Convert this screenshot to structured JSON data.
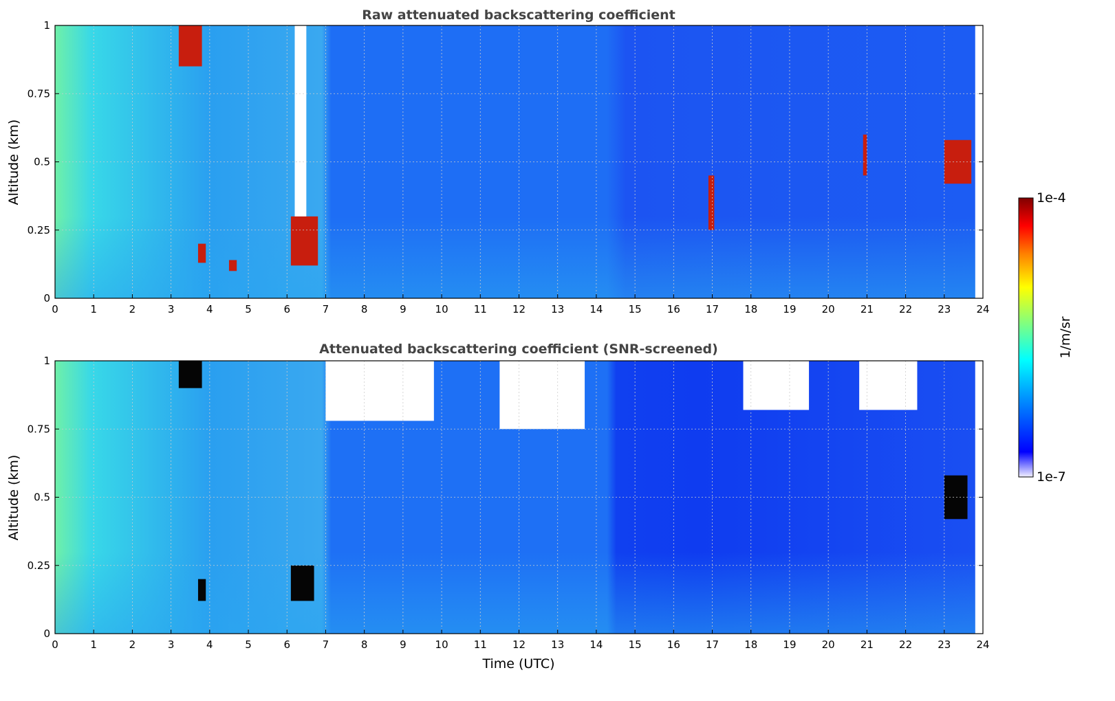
{
  "figure": {
    "colorbar": {
      "max_label": "1e-4",
      "min_label": "1e-7",
      "unit": "1/m/sr",
      "scale": "log",
      "colormap": "jet (white at minimum)",
      "stops": [
        "#f2f0ff",
        "#0000ff",
        "#00a0ff",
        "#00ffff",
        "#80ff80",
        "#ffff00",
        "#ff8000",
        "#ff0000",
        "#800000"
      ]
    }
  },
  "chart_data": [
    {
      "type": "heatmap",
      "title": "Raw attenuated backscattering coefficient",
      "xlabel": "",
      "ylabel": "Altitude (km)",
      "xlim": [
        0,
        24
      ],
      "ylim": [
        0,
        1
      ],
      "x_ticks": [
        "0",
        "1",
        "2",
        "3",
        "4",
        "5",
        "6",
        "7",
        "8",
        "9",
        "10",
        "11",
        "12",
        "13",
        "14",
        "15",
        "16",
        "17",
        "18",
        "19",
        "20",
        "21",
        "22",
        "23",
        "24"
      ],
      "y_ticks": [
        "0",
        "0.25",
        "0.5",
        "0.75",
        "1"
      ],
      "grid": true,
      "data_coverage_hours": [
        0,
        23.8
      ],
      "features": [
        {
          "time_start": 3.2,
          "time_end": 3.8,
          "alt_start": 0.85,
          "alt_end": 1.0,
          "level": "high"
        },
        {
          "time_start": 3.7,
          "time_end": 3.9,
          "alt_start": 0.13,
          "alt_end": 0.2,
          "level": "high"
        },
        {
          "time_start": 4.5,
          "time_end": 4.7,
          "alt_start": 0.1,
          "alt_end": 0.14,
          "level": "high"
        },
        {
          "time_start": 6.1,
          "time_end": 6.8,
          "alt_start": 0.12,
          "alt_end": 0.3,
          "level": "high"
        },
        {
          "time_start": 6.2,
          "time_end": 6.5,
          "alt_start": 0.3,
          "alt_end": 1.0,
          "level": "missing"
        },
        {
          "time_start": 16.9,
          "time_end": 17.05,
          "alt_start": 0.25,
          "alt_end": 0.45,
          "level": "high"
        },
        {
          "time_start": 20.9,
          "time_end": 21.0,
          "alt_start": 0.45,
          "alt_end": 0.6,
          "level": "high"
        },
        {
          "time_start": 23.0,
          "time_end": 23.7,
          "alt_start": 0.42,
          "alt_end": 0.58,
          "level": "high"
        }
      ]
    },
    {
      "type": "heatmap",
      "title": "Attenuated backscattering coefficient (SNR-screened)",
      "xlabel": "Time (UTC)",
      "ylabel": "Altitude (km)",
      "xlim": [
        0,
        24
      ],
      "ylim": [
        0,
        1
      ],
      "x_ticks": [
        "0",
        "1",
        "2",
        "3",
        "4",
        "5",
        "6",
        "7",
        "8",
        "9",
        "10",
        "11",
        "12",
        "13",
        "14",
        "15",
        "16",
        "17",
        "18",
        "19",
        "20",
        "21",
        "22",
        "23",
        "24"
      ],
      "y_ticks": [
        "0",
        "0.25",
        "0.5",
        "0.75",
        "1"
      ],
      "grid": true,
      "data_coverage_hours": [
        0,
        23.8
      ],
      "features": [
        {
          "time_start": 7.0,
          "time_end": 9.8,
          "alt_start": 0.78,
          "alt_end": 1.0,
          "level": "screened"
        },
        {
          "time_start": 11.5,
          "time_end": 13.7,
          "alt_start": 0.75,
          "alt_end": 1.0,
          "level": "screened"
        },
        {
          "time_start": 17.8,
          "time_end": 19.5,
          "alt_start": 0.82,
          "alt_end": 1.0,
          "level": "screened"
        },
        {
          "time_start": 20.8,
          "time_end": 22.3,
          "alt_start": 0.82,
          "alt_end": 1.0,
          "level": "screened"
        },
        {
          "time_start": 3.2,
          "time_end": 3.8,
          "alt_start": 0.9,
          "alt_end": 1.0,
          "level": "saturated"
        },
        {
          "time_start": 3.7,
          "time_end": 3.9,
          "alt_start": 0.12,
          "alt_end": 0.2,
          "level": "saturated"
        },
        {
          "time_start": 6.1,
          "time_end": 6.7,
          "alt_start": 0.12,
          "alt_end": 0.25,
          "level": "saturated"
        },
        {
          "time_start": 23.0,
          "time_end": 23.6,
          "alt_start": 0.42,
          "alt_end": 0.58,
          "level": "saturated"
        }
      ]
    }
  ]
}
